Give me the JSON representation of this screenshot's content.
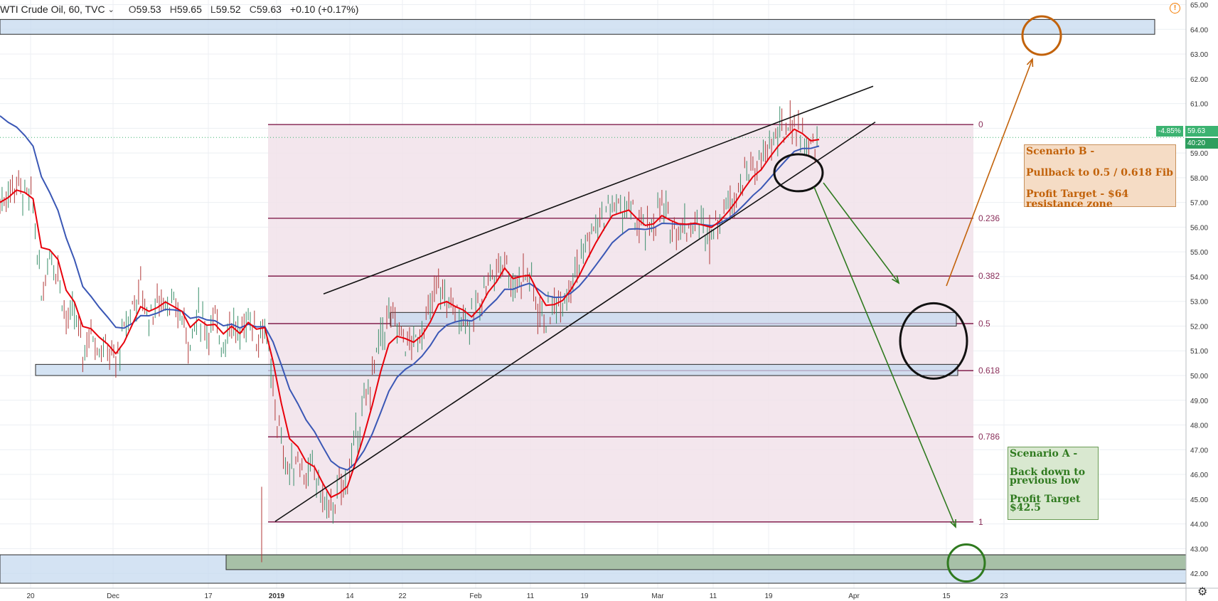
{
  "header": {
    "symbol": "WTI Crude Oil, 60, TVC",
    "open_label": "O",
    "open": "59.53",
    "high_label": "H",
    "high": "59.65",
    "low_label": "L",
    "low": "59.52",
    "close_label": "C",
    "close": "59.63",
    "change": "+0.10 (+0.17%)"
  },
  "price_tag": {
    "percent": "-4.85%",
    "price": "59.63",
    "countdown": "40:20"
  },
  "notes": {
    "scenario_b": [
      "Scenario B -",
      "Pullback to 0.5 / 0.618 Fib",
      "Profit Target - $64",
      "resistance zone"
    ],
    "scenario_a": [
      "Scenario A -",
      "Back down to",
      "previous low",
      "Profit Target",
      "$42.5"
    ]
  },
  "colors": {
    "ema_fast": "#e8000b",
    "ema_slow": "#3a57b5",
    "fib": "#8a2f5a",
    "scenario_b": "#c2620a",
    "scenario_a": "#2f7a1f",
    "zone": "#c6d9ef"
  },
  "chart_data": {
    "type": "line",
    "title": "WTI Crude Oil, 60, TVC",
    "y_axis": {
      "min": 41.5,
      "max": 65,
      "ticks": [
        42,
        43,
        44,
        45,
        46,
        47,
        48,
        49,
        50,
        51,
        52,
        53,
        54,
        55,
        56,
        57,
        58,
        59,
        60,
        61,
        62,
        63,
        64,
        65
      ]
    },
    "x_ticks": [
      "20",
      "Dec",
      "17",
      "2019",
      "14",
      "22",
      "Feb",
      "11",
      "19",
      "Mar",
      "11",
      "19",
      "Apr",
      "15",
      "23"
    ],
    "fibonacci": {
      "levels": [
        {
          "label": "0",
          "value": 60.15
        },
        {
          "label": "0.236",
          "value": 56.36
        },
        {
          "label": "0.382",
          "value": 54.02
        },
        {
          "label": "0.5",
          "value": 52.1
        },
        {
          "label": "0.618",
          "value": 50.2
        },
        {
          "label": "0.786",
          "value": 47.52
        },
        {
          "label": "1",
          "value": 44.08
        }
      ]
    },
    "zones": [
      {
        "name": "resistance",
        "low": 63.8,
        "high": 64.4
      },
      {
        "name": "support-low",
        "low": 41.6,
        "high": 42.75
      },
      {
        "name": "fib-0.5",
        "low": 52.0,
        "high": 52.55
      },
      {
        "name": "fib-0.618",
        "low": 50.0,
        "high": 50.45
      }
    ],
    "series": [
      {
        "values": [
          57.0,
          57.4,
          57.8,
          57.3,
          56.9,
          53.2,
          55.0,
          54.3,
          52.2,
          52.5,
          51.0,
          51.8,
          51.2,
          51.0,
          50.5,
          51.8,
          52.8,
          53.5,
          52.4,
          52.9,
          53.2,
          52.6,
          52.4,
          51.3,
          52.6,
          51.8,
          52.1,
          51.3,
          52.3,
          51.4,
          52.6,
          51.6,
          52.0,
          49.2,
          47.2,
          46.0,
          46.8,
          45.9,
          46.1,
          45.0,
          44.5,
          45.4,
          45.8,
          47.5,
          48.7,
          50.0,
          51.5,
          52.4,
          51.9,
          51.4,
          51.2,
          51.9,
          52.7,
          53.6,
          53.1,
          52.6,
          52.5,
          52.1,
          53.1,
          54.0,
          54.2,
          54.9,
          53.5,
          54.1,
          54.1,
          52.7,
          52.3,
          52.9,
          53.2,
          53.9,
          54.6,
          55.4,
          56.0,
          56.5,
          57.0,
          56.7,
          56.8,
          56.0,
          55.8,
          56.2,
          56.8,
          56.1,
          56.0,
          56.1,
          56.2,
          56.0,
          55.9,
          56.5,
          57.0,
          57.5,
          58.1,
          58.5,
          58.6,
          59.3,
          59.7,
          60.0,
          60.3,
          59.6,
          59.2,
          59.6
        ],
        "x_dates_note": "approximate hourly closes sampled"
      },
      {
        "name": "",
        "values": []
      }
    ]
  }
}
